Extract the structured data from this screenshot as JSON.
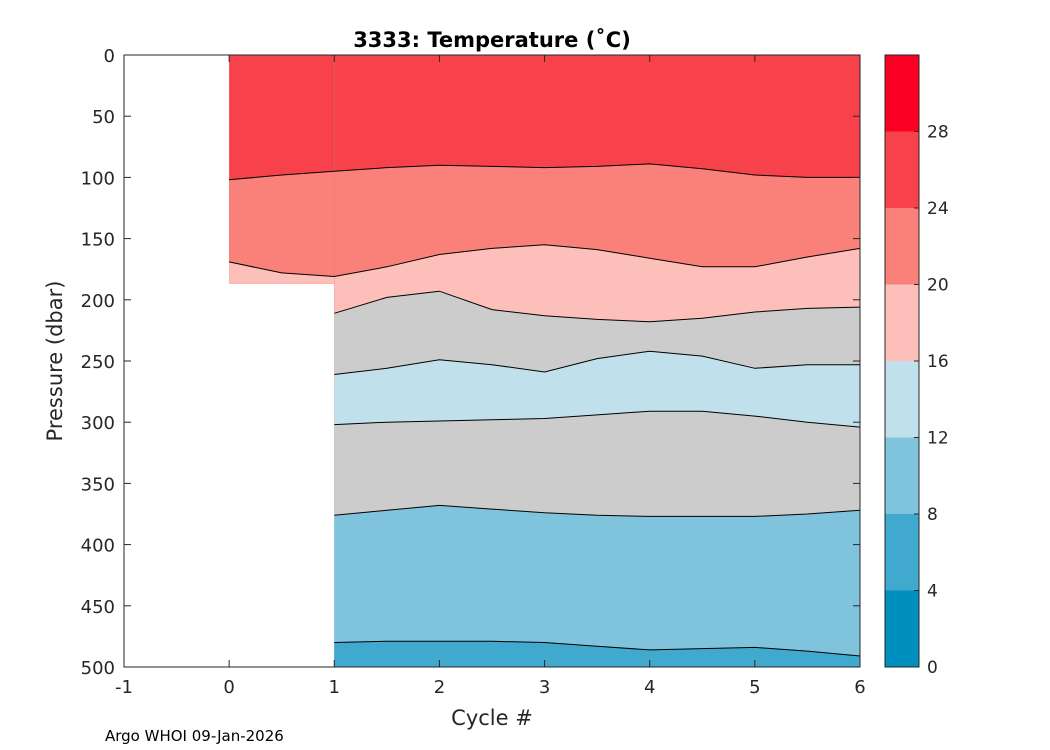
{
  "chart_data": {
    "type": "filled-contour",
    "title": "3333:  Temperature (˚C)",
    "xlabel": "Cycle #",
    "ylabel": "Pressure (dbar)",
    "footer": "Argo WHOI 09-Jan-2026",
    "xlim": [
      -1,
      6
    ],
    "ylim": [
      0,
      500
    ],
    "y_reversed": true,
    "xticks": [
      -1,
      0,
      1,
      2,
      3,
      4,
      5,
      6
    ],
    "yticks": [
      0,
      50,
      100,
      150,
      200,
      250,
      300,
      350,
      400,
      450,
      500
    ],
    "colorbar": {
      "range": [
        0,
        32
      ],
      "ticks": [
        0,
        4,
        8,
        12,
        16,
        20,
        24,
        28
      ],
      "levels": [
        {
          "from": 0,
          "to": 4,
          "color": "#0090bf"
        },
        {
          "from": 4,
          "to": 8,
          "color": "#41a8ce"
        },
        {
          "from": 8,
          "to": 12,
          "color": "#80c3dd"
        },
        {
          "from": 12,
          "to": 16,
          "color": "#c0e1ec"
        },
        {
          "from": 16,
          "to": 20,
          "color": "#fcbfba"
        },
        {
          "from": 20,
          "to": 24,
          "color": "#f98179"
        },
        {
          "from": 24,
          "to": 28,
          "color": "#f8424b"
        },
        {
          "from": 28,
          "to": 32,
          "color": "#fb0024"
        }
      ]
    },
    "data_extent": [
      {
        "x_from": 0,
        "x_to": 1,
        "p_top": 0,
        "p_bottom": 187
      },
      {
        "x_from": 1,
        "x_to": 6,
        "p_top": 0,
        "p_bottom": 500
      }
    ],
    "isotherms": [
      {
        "level": 24,
        "points": [
          [
            0,
            102
          ],
          [
            0.5,
            98
          ],
          [
            1,
            95
          ],
          [
            1.5,
            92
          ],
          [
            2,
            90
          ],
          [
            2.5,
            91
          ],
          [
            3,
            92
          ],
          [
            3.5,
            91
          ],
          [
            4,
            89
          ],
          [
            4.5,
            93
          ],
          [
            5,
            98
          ],
          [
            5.5,
            100
          ],
          [
            6,
            100
          ]
        ]
      },
      {
        "level": 20,
        "points": [
          [
            0,
            169
          ],
          [
            0.5,
            178
          ],
          [
            1,
            181
          ],
          [
            1.5,
            173
          ],
          [
            2,
            163
          ],
          [
            2.5,
            158
          ],
          [
            3,
            155
          ],
          [
            3.5,
            159
          ],
          [
            4,
            166
          ],
          [
            4.5,
            173
          ],
          [
            5,
            173
          ],
          [
            5.5,
            165
          ],
          [
            6,
            158
          ]
        ]
      },
      {
        "level": 16,
        "points": [
          [
            1,
            211
          ],
          [
            1.5,
            198
          ],
          [
            2,
            193
          ],
          [
            2.5,
            208
          ],
          [
            3,
            213
          ],
          [
            3.5,
            216
          ],
          [
            4,
            218
          ],
          [
            4.5,
            215
          ],
          [
            5,
            210
          ],
          [
            5.5,
            207
          ],
          [
            6,
            206
          ]
        ]
      },
      {
        "level": 14,
        "points": [
          [
            1,
            261
          ],
          [
            1.5,
            256
          ],
          [
            2,
            249
          ],
          [
            2.5,
            253
          ],
          [
            3,
            259
          ],
          [
            3.5,
            248
          ],
          [
            4,
            242
          ],
          [
            4.5,
            246
          ],
          [
            5,
            256
          ],
          [
            5.5,
            253
          ],
          [
            6,
            253
          ]
        ]
      },
      {
        "level": 12,
        "points": [
          [
            1,
            302
          ],
          [
            1.5,
            300
          ],
          [
            2,
            299
          ],
          [
            2.5,
            298
          ],
          [
            3,
            297
          ],
          [
            3.5,
            294
          ],
          [
            4,
            291
          ],
          [
            4.5,
            291
          ],
          [
            5,
            295
          ],
          [
            5.5,
            300
          ],
          [
            6,
            304
          ]
        ]
      },
      {
        "level": 10,
        "points": [
          [
            1,
            376
          ],
          [
            1.5,
            372
          ],
          [
            2,
            368
          ],
          [
            2.5,
            371
          ],
          [
            3,
            374
          ],
          [
            3.5,
            376
          ],
          [
            4,
            377
          ],
          [
            4.5,
            377
          ],
          [
            5,
            377
          ],
          [
            5.5,
            375
          ],
          [
            6,
            372
          ]
        ]
      },
      {
        "level": 8,
        "points": [
          [
            1,
            480
          ],
          [
            1.5,
            479
          ],
          [
            2,
            479
          ],
          [
            2.5,
            479
          ],
          [
            3,
            480
          ],
          [
            3.5,
            483
          ],
          [
            4,
            486
          ],
          [
            4.5,
            485
          ],
          [
            5,
            484
          ],
          [
            5.5,
            487
          ],
          [
            6,
            491
          ]
        ]
      }
    ]
  }
}
